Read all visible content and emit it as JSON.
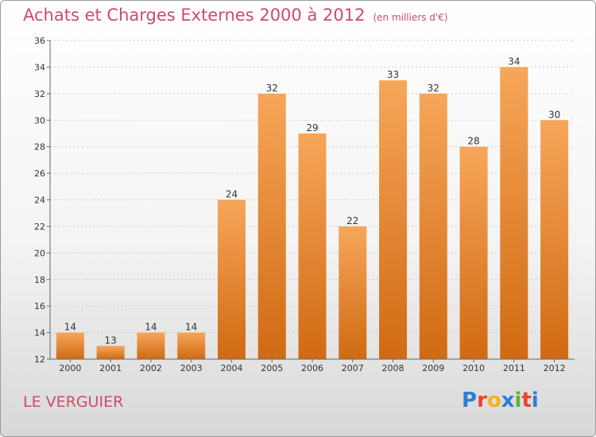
{
  "header": {
    "title": "Achats et Charges Externes 2000 à 2012",
    "unit": "(en milliers d'€)"
  },
  "footer": {
    "commune": "LE VERGUIER",
    "logo": "Proxiti",
    "logo_colors": [
      "#2a7fd4",
      "#e8462e",
      "#f2b21a",
      "#2a7fd4",
      "#5bb52e",
      "#e8462e",
      "#2a7fd4"
    ]
  },
  "colors": {
    "title": "#d04a6a",
    "bar_top": "#f7a65a",
    "bar_bottom": "#d06a12"
  },
  "chart_data": {
    "type": "bar",
    "title": "Achats et Charges Externes 2000 à 2012",
    "categories": [
      "2000",
      "2001",
      "2002",
      "2003",
      "2004",
      "2005",
      "2006",
      "2007",
      "2008",
      "2009",
      "2010",
      "2011",
      "2012"
    ],
    "values": [
      14,
      13,
      14,
      14,
      24,
      32,
      29,
      22,
      33,
      32,
      28,
      34,
      30
    ],
    "ylim": [
      12,
      36
    ],
    "yticks": [
      12,
      14,
      16,
      18,
      20,
      22,
      24,
      26,
      28,
      30,
      32,
      34,
      36
    ],
    "grid": true,
    "xlabel": "",
    "ylabel": ""
  }
}
